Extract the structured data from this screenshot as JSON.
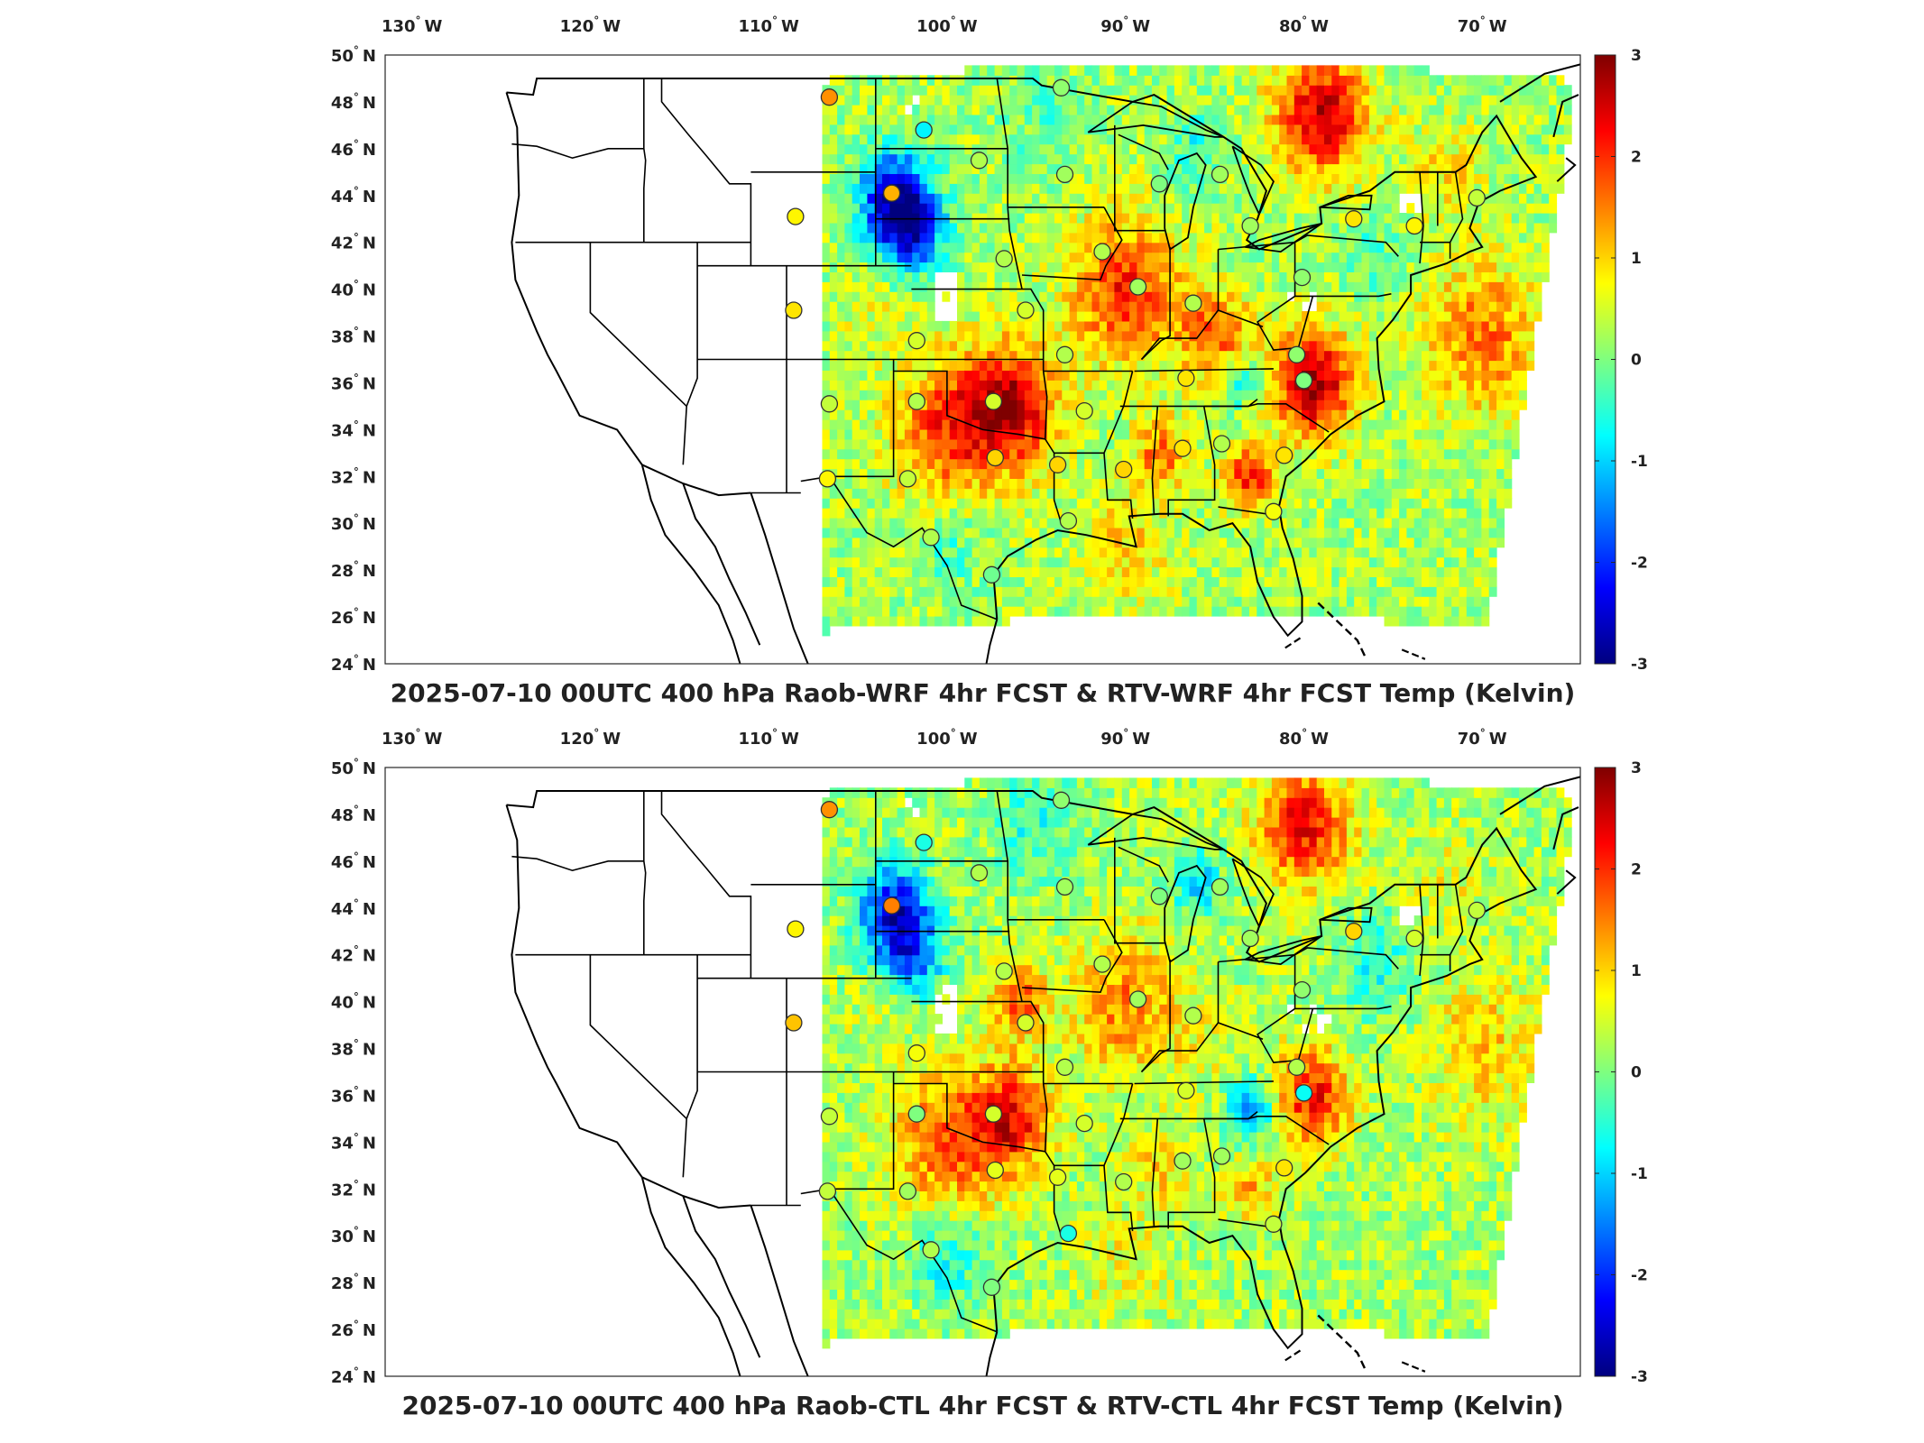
{
  "maps": [
    {
      "id": "raob-wrf",
      "title": "2025-07-10 00UTC 400 hPa Raob-WRF 4hr FCST & RTV-WRF 4hr FCST Temp (Kelvin)",
      "lon_ticks": [
        "130",
        "120",
        "110",
        "100",
        "90",
        "80",
        "70"
      ],
      "lat_ticks": [
        "50",
        "48",
        "46",
        "44",
        "42",
        "40",
        "38",
        "36",
        "34",
        "32",
        "30",
        "28",
        "26",
        "24"
      ],
      "lon_suffix": "W",
      "lat_suffix": "N",
      "colorbar": {
        "min": -3,
        "max": 3,
        "ticks": [
          "3",
          "2",
          "1",
          "0",
          "-1",
          "-2",
          "-3"
        ]
      },
      "raob_stations": [
        {
          "lon": -106.6,
          "lat": 48.2,
          "value": 1.4
        },
        {
          "lon": -101.3,
          "lat": 46.8,
          "value": -0.8
        },
        {
          "lon": -98.2,
          "lat": 45.5,
          "value": 0.3
        },
        {
          "lon": -93.6,
          "lat": 48.6,
          "value": 0.1
        },
        {
          "lon": -93.4,
          "lat": 44.9,
          "value": 0.2
        },
        {
          "lon": -88.1,
          "lat": 44.5,
          "value": 0.0
        },
        {
          "lon": -84.7,
          "lat": 44.9,
          "value": 0.2
        },
        {
          "lon": -103.1,
          "lat": 44.1,
          "value": 1.2
        },
        {
          "lon": -108.5,
          "lat": 43.1,
          "value": 0.8
        },
        {
          "lon": -96.8,
          "lat": 41.3,
          "value": 0.3
        },
        {
          "lon": -91.3,
          "lat": 41.6,
          "value": 0.3
        },
        {
          "lon": -89.3,
          "lat": 40.1,
          "value": 0.2
        },
        {
          "lon": -108.6,
          "lat": 39.1,
          "value": 0.9
        },
        {
          "lon": -95.6,
          "lat": 39.1,
          "value": 0.5
        },
        {
          "lon": -86.2,
          "lat": 39.4,
          "value": 0.3
        },
        {
          "lon": -83.0,
          "lat": 42.7,
          "value": 0.2
        },
        {
          "lon": -80.1,
          "lat": 40.5,
          "value": 0.1
        },
        {
          "lon": -77.2,
          "lat": 43.0,
          "value": 0.9
        },
        {
          "lon": -73.8,
          "lat": 42.7,
          "value": 0.8
        },
        {
          "lon": -70.3,
          "lat": 43.9,
          "value": 0.4
        },
        {
          "lon": -101.7,
          "lat": 37.8,
          "value": 0.5
        },
        {
          "lon": -93.4,
          "lat": 37.2,
          "value": 0.3
        },
        {
          "lon": -80.4,
          "lat": 37.2,
          "value": 0.1
        },
        {
          "lon": -86.6,
          "lat": 36.2,
          "value": 0.9
        },
        {
          "lon": -80.0,
          "lat": 36.1,
          "value": 0.0
        },
        {
          "lon": -106.6,
          "lat": 35.1,
          "value": 0.4
        },
        {
          "lon": -101.7,
          "lat": 35.2,
          "value": 0.3
        },
        {
          "lon": -97.4,
          "lat": 35.2,
          "value": 0.5
        },
        {
          "lon": -92.3,
          "lat": 34.8,
          "value": 0.5
        },
        {
          "lon": -86.8,
          "lat": 33.2,
          "value": 0.9
        },
        {
          "lon": -84.6,
          "lat": 33.4,
          "value": 0.3
        },
        {
          "lon": -81.1,
          "lat": 32.9,
          "value": 0.9
        },
        {
          "lon": -97.3,
          "lat": 32.8,
          "value": 1.0
        },
        {
          "lon": -93.8,
          "lat": 32.5,
          "value": 1.0
        },
        {
          "lon": -90.1,
          "lat": 32.3,
          "value": 1.0
        },
        {
          "lon": -106.7,
          "lat": 31.9,
          "value": 0.8
        },
        {
          "lon": -102.2,
          "lat": 31.9,
          "value": 0.4
        },
        {
          "lon": -93.2,
          "lat": 30.1,
          "value": 0.3
        },
        {
          "lon": -100.9,
          "lat": 29.4,
          "value": 0.3
        },
        {
          "lon": -97.5,
          "lat": 27.8,
          "value": -0.1
        },
        {
          "lon": -81.7,
          "lat": 30.5,
          "value": 0.7
        }
      ]
    },
    {
      "id": "raob-ctl",
      "title": "2025-07-10 00UTC 400 hPa Raob-CTL 4hr FCST & RTV-CTL 4hr FCST Temp (Kelvin)",
      "lon_ticks": [
        "130",
        "120",
        "110",
        "100",
        "90",
        "80",
        "70"
      ],
      "lat_ticks": [
        "50",
        "48",
        "46",
        "44",
        "42",
        "40",
        "38",
        "36",
        "34",
        "32",
        "30",
        "28",
        "26",
        "24"
      ],
      "lon_suffix": "W",
      "lat_suffix": "N",
      "colorbar": {
        "min": -3,
        "max": 3,
        "ticks": [
          "3",
          "2",
          "1",
          "0",
          "-1",
          "-2",
          "-3"
        ]
      },
      "raob_stations": [
        {
          "lon": -106.6,
          "lat": 48.2,
          "value": 1.4
        },
        {
          "lon": -101.3,
          "lat": 46.8,
          "value": -0.6
        },
        {
          "lon": -98.2,
          "lat": 45.5,
          "value": 0.3
        },
        {
          "lon": -93.6,
          "lat": 48.6,
          "value": 0.1
        },
        {
          "lon": -93.4,
          "lat": 44.9,
          "value": 0.2
        },
        {
          "lon": -88.1,
          "lat": 44.5,
          "value": 0.0
        },
        {
          "lon": -84.7,
          "lat": 44.9,
          "value": 0.2
        },
        {
          "lon": -103.1,
          "lat": 44.1,
          "value": 1.5
        },
        {
          "lon": -108.5,
          "lat": 43.1,
          "value": 0.8
        },
        {
          "lon": -96.8,
          "lat": 41.3,
          "value": 0.3
        },
        {
          "lon": -91.3,
          "lat": 41.6,
          "value": 0.3
        },
        {
          "lon": -89.3,
          "lat": 40.1,
          "value": 0.2
        },
        {
          "lon": -108.6,
          "lat": 39.1,
          "value": 1.1
        },
        {
          "lon": -95.6,
          "lat": 39.1,
          "value": 0.5
        },
        {
          "lon": -86.2,
          "lat": 39.4,
          "value": 0.3
        },
        {
          "lon": -83.0,
          "lat": 42.7,
          "value": 0.2
        },
        {
          "lon": -80.1,
          "lat": 40.5,
          "value": 0.1
        },
        {
          "lon": -77.2,
          "lat": 43.0,
          "value": 1.0
        },
        {
          "lon": -73.8,
          "lat": 42.7,
          "value": 0.5
        },
        {
          "lon": -70.3,
          "lat": 43.9,
          "value": 0.4
        },
        {
          "lon": -101.7,
          "lat": 37.8,
          "value": 0.7
        },
        {
          "lon": -93.4,
          "lat": 37.2,
          "value": 0.3
        },
        {
          "lon": -80.4,
          "lat": 37.2,
          "value": 0.3
        },
        {
          "lon": -86.6,
          "lat": 36.2,
          "value": 0.5
        },
        {
          "lon": -80.0,
          "lat": 36.1,
          "value": -0.7
        },
        {
          "lon": -106.6,
          "lat": 35.1,
          "value": 0.4
        },
        {
          "lon": -101.7,
          "lat": 35.2,
          "value": 0.0
        },
        {
          "lon": -97.4,
          "lat": 35.2,
          "value": 0.5
        },
        {
          "lon": -92.3,
          "lat": 34.8,
          "value": 0.5
        },
        {
          "lon": -86.8,
          "lat": 33.2,
          "value": 0.2
        },
        {
          "lon": -84.6,
          "lat": 33.4,
          "value": 0.2
        },
        {
          "lon": -81.1,
          "lat": 32.9,
          "value": 0.9
        },
        {
          "lon": -97.3,
          "lat": 32.8,
          "value": 0.6
        },
        {
          "lon": -93.8,
          "lat": 32.5,
          "value": 0.6
        },
        {
          "lon": -90.1,
          "lat": 32.3,
          "value": 0.3
        },
        {
          "lon": -106.7,
          "lat": 31.9,
          "value": 0.4
        },
        {
          "lon": -102.2,
          "lat": 31.9,
          "value": 0.2
        },
        {
          "lon": -93.2,
          "lat": 30.1,
          "value": -0.6
        },
        {
          "lon": -100.9,
          "lat": 29.4,
          "value": 0.3
        },
        {
          "lon": -97.5,
          "lat": 27.8,
          "value": 0.0
        },
        {
          "lon": -81.7,
          "lat": 30.5,
          "value": 0.4
        }
      ]
    }
  ],
  "colormap": [
    "#00007f",
    "#0000ff",
    "#007fff",
    "#00ffff",
    "#7fff7f",
    "#ffff00",
    "#ff7f00",
    "#ff0000",
    "#7f0000"
  ],
  "land_outline_color": "#000000"
}
